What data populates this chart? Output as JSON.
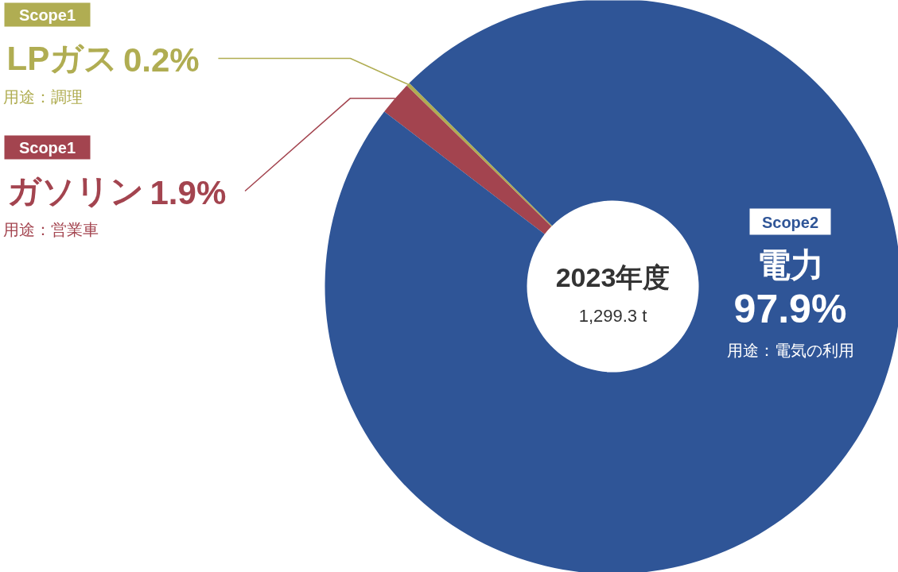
{
  "chart_data": {
    "type": "donut",
    "title": "2023年度",
    "subtitle": "1,299.3 t",
    "categories": [
      "LPガス",
      "ガソリン",
      "電力"
    ],
    "values": [
      0.2,
      1.9,
      97.9
    ],
    "colors": [
      "#b0ad52",
      "#a3444f",
      "#2f5597"
    ],
    "value_labels": [
      "0.2%",
      "1.9%",
      "97.9%"
    ],
    "legend": "top left",
    "annotations": [
      "Scope1",
      "用途：調理",
      "Scope1",
      "用途：営業車",
      "Scope2",
      "用途：電気の利用"
    ]
  }
}
